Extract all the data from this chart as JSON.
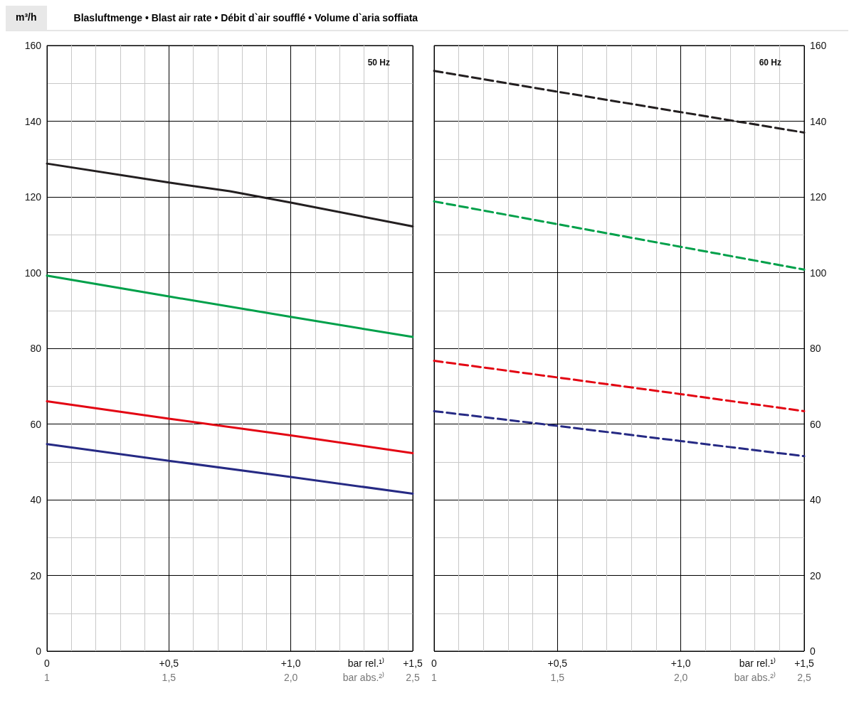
{
  "chart_data": [
    {
      "type": "line",
      "title": "Blasluftmenge • Blast air rate • Débit d`air soufflé • Volume d`aria soffiata",
      "ylabel": "m³/h",
      "xlabel": "bar rel.¹⁾",
      "x2label": "bar abs.²⁾",
      "annotations": [
        "50 Hz"
      ],
      "grid": true,
      "marker": "none",
      "line_style": "solid",
      "xlim": [
        0,
        1.5
      ],
      "xticks": [
        0,
        {
          "value": 0.5,
          "label": "+0,5"
        },
        {
          "value": 1.0,
          "label": "+1,0"
        },
        {
          "value": 1.5,
          "label": "+1,5"
        }
      ],
      "x2lim": [
        1,
        2.5
      ],
      "x2ticks": [
        1,
        {
          "value": 1.5,
          "label": "1,5"
        },
        {
          "value": 2.0,
          "label": "2,0"
        },
        {
          "value": 2.5,
          "label": "2,5"
        }
      ],
      "ylim": [
        0,
        160
      ],
      "yticks": [
        0,
        20,
        40,
        60,
        80,
        100,
        120,
        140,
        160
      ],
      "series": [
        {
          "color": "#231f20",
          "x": [
            0,
            0.5,
            0.75,
            1.0,
            1.5
          ],
          "values": [
            128.8,
            123.8,
            121.5,
            118.5,
            112.2
          ]
        },
        {
          "color": "#00a04a",
          "x": [
            0,
            0.5,
            1.0,
            1.5
          ],
          "values": [
            99.2,
            93.7,
            88.3,
            83
          ]
        },
        {
          "color": "#e30613",
          "x": [
            0,
            0.5,
            1.0,
            1.5
          ],
          "values": [
            66,
            61.4,
            57,
            52.3
          ]
        },
        {
          "color": "#262a84",
          "x": [
            0,
            0.5,
            1.0,
            1.5
          ],
          "values": [
            54.7,
            50.3,
            46,
            41.6
          ]
        }
      ]
    },
    {
      "type": "line",
      "xlabel": "bar rel.¹⁾",
      "x2label": "bar abs.²⁾",
      "annotations": [
        "60 Hz"
      ],
      "grid": true,
      "marker": "none",
      "line_style": "dashed",
      "xlim": [
        0,
        1.5
      ],
      "xticks": [
        0,
        {
          "value": 0.5,
          "label": "+0,5"
        },
        {
          "value": 1.0,
          "label": "+1,0"
        },
        {
          "value": 1.5,
          "label": "+1,5"
        }
      ],
      "x2lim": [
        1,
        2.5
      ],
      "x2ticks": [
        1,
        {
          "value": 1.5,
          "label": "1,5"
        },
        {
          "value": 2.0,
          "label": "2,0"
        },
        {
          "value": 2.5,
          "label": "2,5"
        }
      ],
      "y2lim": [
        0,
        160
      ],
      "y2ticks": [
        0,
        20,
        40,
        60,
        80,
        100,
        120,
        140,
        160
      ],
      "series": [
        {
          "axis": "y2",
          "color": "#231f20",
          "x": [
            0,
            0.5,
            1.0,
            1.5
          ],
          "values": [
            153.3,
            147.8,
            142.4,
            137
          ]
        },
        {
          "axis": "y2",
          "color": "#00a04a",
          "x": [
            0,
            0.5,
            1.0,
            1.5
          ],
          "values": [
            118.8,
            112.8,
            106.8,
            100.8
          ]
        },
        {
          "axis": "y2",
          "color": "#e30613",
          "x": [
            0,
            0.5,
            1.0,
            1.5
          ],
          "values": [
            76.7,
            72.3,
            67.9,
            63.4
          ]
        },
        {
          "axis": "y2",
          "color": "#262a84",
          "x": [
            0,
            0.5,
            1.0,
            1.5
          ],
          "values": [
            63.4,
            59.5,
            55.5,
            51.5
          ]
        }
      ]
    }
  ]
}
